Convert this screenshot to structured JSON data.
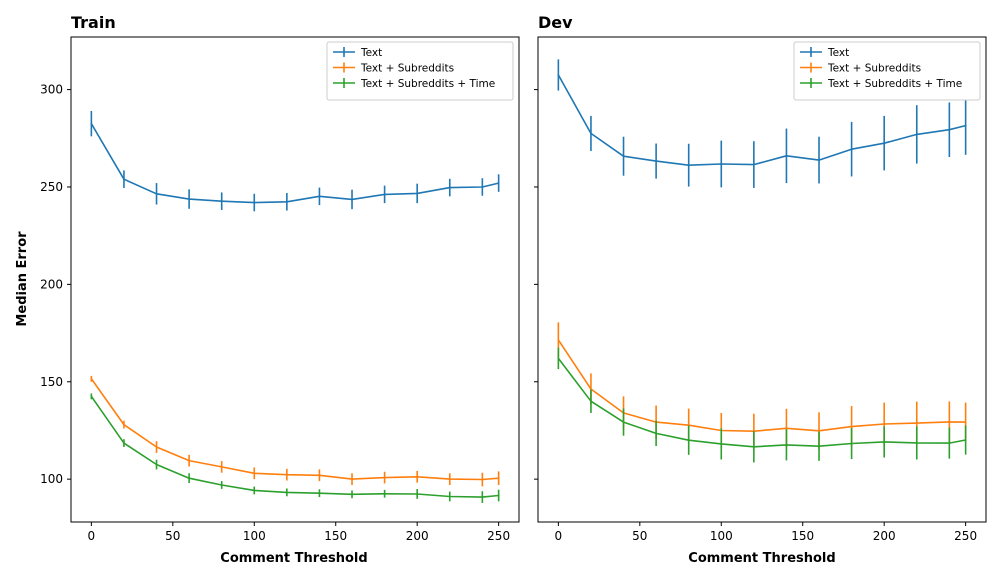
{
  "chart_data": {
    "type": "line",
    "shared_y": true,
    "ylabel": "Median Error",
    "ylim": [
      78,
      327
    ],
    "yticks": [
      100,
      150,
      200,
      250,
      300
    ],
    "xticks": [
      0,
      50,
      100,
      150,
      200,
      250
    ],
    "xlim": [
      -12.5,
      262.5
    ],
    "legend_position": "top-right",
    "colors": {
      "Text": "#1f77b4",
      "Text + Subreddits": "#ff7f0e",
      "Text + Subreddits + Time": "#2ca02c"
    },
    "panels": [
      {
        "title": "Train",
        "xlabel": "Comment Threshold",
        "x": [
          0,
          20,
          40,
          60,
          80,
          100,
          120,
          140,
          160,
          180,
          200,
          220,
          240,
          250
        ],
        "series": [
          {
            "name": "Text",
            "values": [
              282.5,
              254,
              246.5,
              243.8,
              242.7,
              242,
              242.4,
              245.2,
              243.6,
              246.2,
              246.7,
              249.7,
              250,
              252
            ],
            "errors": [
              6.5,
              4.5,
              5.5,
              5,
              4.5,
              4.5,
              4.5,
              4.5,
              5,
              4.5,
              5,
              4.5,
              4.5,
              4.5
            ]
          },
          {
            "name": "Text + Subreddits",
            "values": [
              151.5,
              128,
              116.5,
              109.5,
              106.3,
              103,
              102.3,
              102,
              100,
              100.8,
              101.2,
              100,
              99.8,
              100.5
            ],
            "errors": [
              1.5,
              2,
              3,
              3,
              3,
              3,
              3,
              3,
              3,
              3,
              3,
              3,
              3.5,
              3.5
            ]
          },
          {
            "name": "Text + Subreddits + Time",
            "values": [
              142.5,
              118.5,
              107.5,
              100.5,
              97,
              94.2,
              93.2,
              92.8,
              92.2,
              92.5,
              92.4,
              91.1,
              90.8,
              91.6
            ],
            "errors": [
              1.5,
              2,
              2.5,
              2.5,
              2,
              2,
              2,
              2,
              2,
              2,
              2.5,
              2.5,
              3,
              3
            ]
          }
        ]
      },
      {
        "title": "Dev",
        "xlabel": "Comment Threshold",
        "x": [
          0,
          20,
          40,
          60,
          80,
          100,
          120,
          140,
          160,
          180,
          200,
          220,
          240,
          250
        ],
        "series": [
          {
            "name": "Text",
            "values": [
              307.5,
              277.5,
              265.8,
              263.3,
              261.2,
              261.8,
              261.5,
              266,
              263.8,
              269.4,
              272.5,
              277,
              279.4,
              281.5
            ],
            "errors": [
              8,
              9,
              10,
              9,
              11,
              12,
              12,
              14,
              12,
              14,
              14,
              15,
              14,
              15
            ]
          },
          {
            "name": "Text + Subreddits",
            "values": [
              171.5,
              146.3,
              134,
              129.3,
              127.7,
              125,
              124.6,
              126.1,
              124.8,
              127,
              128.3,
              128.8,
              129.4,
              129.3
            ],
            "errors": [
              9,
              8,
              8.5,
              8.5,
              8.5,
              9,
              9,
              10,
              9.5,
              10.5,
              11,
              11,
              10.5,
              10
            ]
          },
          {
            "name": "Text + Subreddits + Time",
            "values": [
              162,
              140,
              129.3,
              123.5,
              120,
              118.1,
              116.6,
              117.6,
              116.9,
              118.3,
              119.1,
              118.6,
              118.5,
              120.1
            ],
            "errors": [
              5.5,
              6,
              7,
              6.5,
              7.5,
              8,
              8,
              8,
              7.5,
              8,
              8,
              8.5,
              8,
              7.5
            ]
          }
        ]
      }
    ]
  }
}
